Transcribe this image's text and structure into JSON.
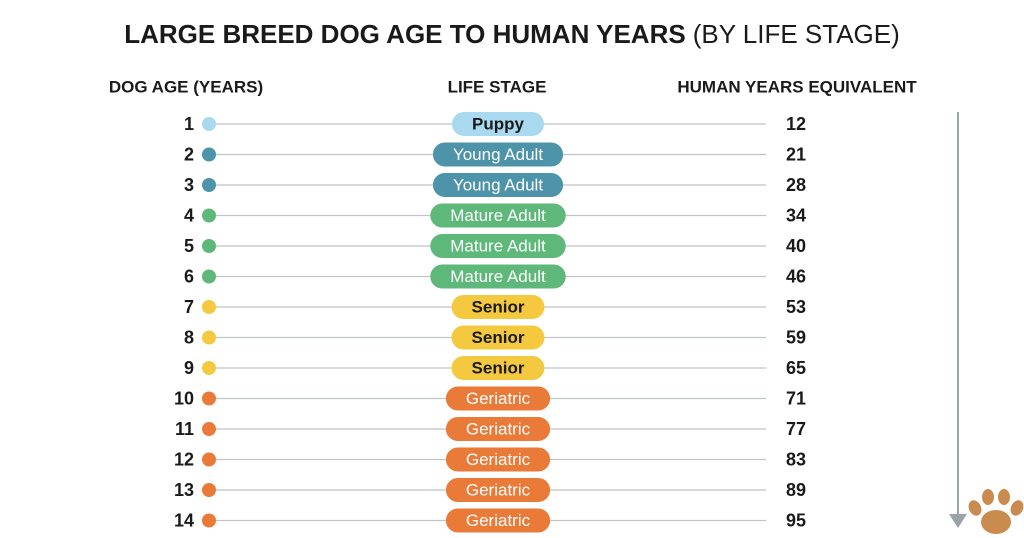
{
  "header": {
    "title_bold": "LARGE BREED DOG AGE TO HUMAN YEARS",
    "title_light": "(BY LIFE STAGE)"
  },
  "table": {
    "columns": [
      "DOG AGE (YEARS)",
      "LIFE STAGE",
      "HUMAN YEARS EQUIVALENT"
    ],
    "rows": [
      {
        "age": "1",
        "stage": "Puppy",
        "human": "12",
        "color": "#a9d9ef"
      },
      {
        "age": "2",
        "stage": "Young Adult",
        "human": "21",
        "color": "#4d93aa"
      },
      {
        "age": "3",
        "stage": "Young Adult",
        "human": "28",
        "color": "#4d93aa"
      },
      {
        "age": "4",
        "stage": "Mature Adult",
        "human": "34",
        "color": "#5db87a"
      },
      {
        "age": "5",
        "stage": "Mature Adult",
        "human": "40",
        "color": "#5db87a"
      },
      {
        "age": "6",
        "stage": "Mature Adult",
        "human": "46",
        "color": "#5db87a"
      },
      {
        "age": "7",
        "stage": "Senior",
        "human": "53",
        "color": "#f5c93f"
      },
      {
        "age": "8",
        "stage": "Senior",
        "human": "59",
        "color": "#f5c93f"
      },
      {
        "age": "9",
        "stage": "Senior",
        "human": "65",
        "color": "#f5c93f"
      },
      {
        "age": "10",
        "stage": "Geriatric",
        "human": "71",
        "color": "#e97a38"
      },
      {
        "age": "11",
        "stage": "Geriatric",
        "human": "77",
        "color": "#e97a38"
      },
      {
        "age": "12",
        "stage": "Geriatric",
        "human": "83",
        "color": "#e97a38"
      },
      {
        "age": "13",
        "stage": "Geriatric",
        "human": "89",
        "color": "#e97a38"
      },
      {
        "age": "14",
        "stage": "Geriatric",
        "human": "95",
        "color": "#e97a38"
      }
    ]
  }
}
